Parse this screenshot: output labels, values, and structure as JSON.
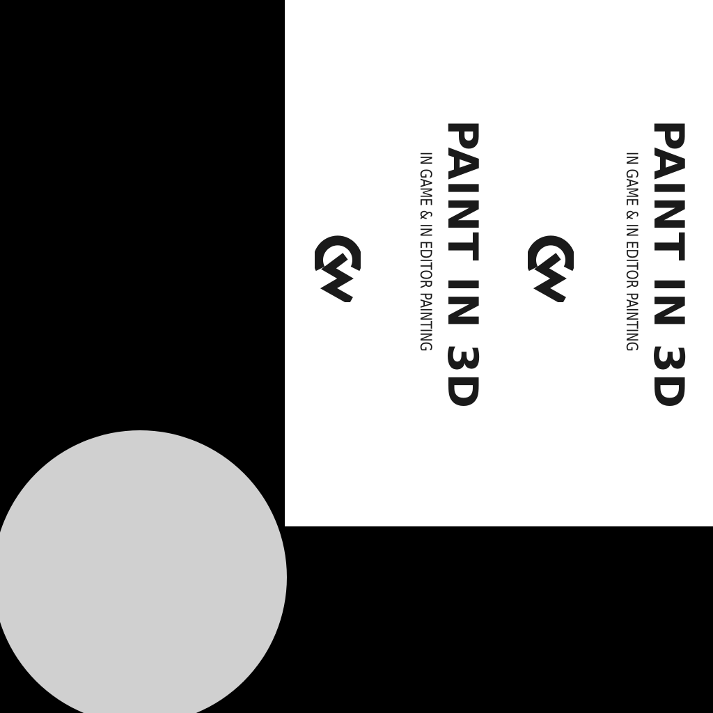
{
  "logos": [
    {
      "title": "PAINT IN 3D",
      "subtitle": "IN GAME & IN EDITOR PAINTING",
      "icon": "gw-logo-icon"
    },
    {
      "title": "PAINT IN 3D",
      "subtitle": "IN GAME & IN EDITOR PAINTING",
      "icon": "gw-logo-icon"
    }
  ],
  "colors": {
    "background": "#000000",
    "panel": "#ffffff",
    "disc": "#d0d0d0",
    "logo_ink": "#1a1a1a"
  }
}
